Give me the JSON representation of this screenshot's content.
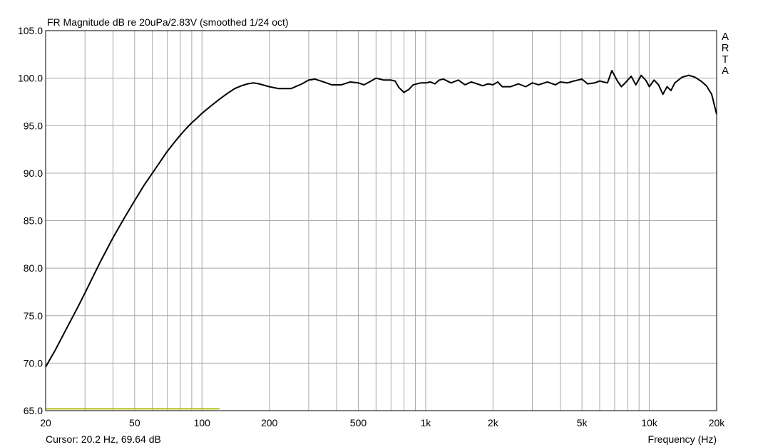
{
  "chart_data": {
    "type": "line",
    "title": "FR Magnitude dB re 20uPa/2.83V (smoothed 1/24 oct)",
    "xlabel": "Frequency (Hz)",
    "ylabel": "",
    "x_scale": "log",
    "xlim": [
      20,
      20000
    ],
    "ylim": [
      65,
      105
    ],
    "grid": true,
    "x_ticks": [
      {
        "value": 20,
        "label": "20"
      },
      {
        "value": 50,
        "label": "50"
      },
      {
        "value": 100,
        "label": "100"
      },
      {
        "value": 200,
        "label": "200"
      },
      {
        "value": 500,
        "label": "500"
      },
      {
        "value": 1000,
        "label": "1k"
      },
      {
        "value": 2000,
        "label": "2k"
      },
      {
        "value": 5000,
        "label": "5k"
      },
      {
        "value": 10000,
        "label": "10k"
      },
      {
        "value": 20000,
        "label": "20k"
      }
    ],
    "x_minor_grid": [
      30,
      40,
      50,
      60,
      70,
      80,
      90,
      100,
      200,
      300,
      400,
      500,
      600,
      700,
      800,
      900,
      1000,
      2000,
      3000,
      4000,
      5000,
      6000,
      7000,
      8000,
      9000,
      10000
    ],
    "y_ticks": [
      {
        "value": 105,
        "label": "105.0"
      },
      {
        "value": 100,
        "label": "100.0"
      },
      {
        "value": 95,
        "label": "95.0"
      },
      {
        "value": 90,
        "label": "90.0"
      },
      {
        "value": 85,
        "label": "85.0"
      },
      {
        "value": 80,
        "label": "80.0"
      },
      {
        "value": 75,
        "label": "75.0"
      },
      {
        "value": 70,
        "label": "70.0"
      },
      {
        "value": 65,
        "label": "65.0"
      }
    ],
    "series": [
      {
        "color": "#000000",
        "points": [
          [
            20,
            69.6
          ],
          [
            22,
            71.3
          ],
          [
            25,
            73.8
          ],
          [
            28,
            76.0
          ],
          [
            30,
            77.4
          ],
          [
            35,
            80.6
          ],
          [
            40,
            83.2
          ],
          [
            45,
            85.3
          ],
          [
            50,
            87.1
          ],
          [
            55,
            88.7
          ],
          [
            60,
            90.0
          ],
          [
            65,
            91.2
          ],
          [
            70,
            92.3
          ],
          [
            75,
            93.2
          ],
          [
            80,
            94.0
          ],
          [
            85,
            94.7
          ],
          [
            90,
            95.3
          ],
          [
            95,
            95.8
          ],
          [
            100,
            96.3
          ],
          [
            110,
            97.1
          ],
          [
            120,
            97.8
          ],
          [
            130,
            98.4
          ],
          [
            140,
            98.9
          ],
          [
            150,
            99.2
          ],
          [
            160,
            99.4
          ],
          [
            170,
            99.5
          ],
          [
            180,
            99.4
          ],
          [
            200,
            99.1
          ],
          [
            220,
            98.9
          ],
          [
            250,
            98.9
          ],
          [
            280,
            99.4
          ],
          [
            300,
            99.8
          ],
          [
            320,
            99.9
          ],
          [
            350,
            99.6
          ],
          [
            380,
            99.3
          ],
          [
            420,
            99.3
          ],
          [
            460,
            99.6
          ],
          [
            500,
            99.5
          ],
          [
            530,
            99.3
          ],
          [
            560,
            99.6
          ],
          [
            600,
            100.0
          ],
          [
            650,
            99.8
          ],
          [
            700,
            99.8
          ],
          [
            730,
            99.7
          ],
          [
            760,
            99.0
          ],
          [
            800,
            98.5
          ],
          [
            840,
            98.8
          ],
          [
            880,
            99.3
          ],
          [
            950,
            99.5
          ],
          [
            1000,
            99.5
          ],
          [
            1050,
            99.6
          ],
          [
            1100,
            99.4
          ],
          [
            1150,
            99.8
          ],
          [
            1200,
            99.9
          ],
          [
            1300,
            99.5
          ],
          [
            1400,
            99.8
          ],
          [
            1500,
            99.3
          ],
          [
            1600,
            99.6
          ],
          [
            1700,
            99.4
          ],
          [
            1800,
            99.2
          ],
          [
            1900,
            99.4
          ],
          [
            2000,
            99.3
          ],
          [
            2100,
            99.6
          ],
          [
            2200,
            99.1
          ],
          [
            2400,
            99.1
          ],
          [
            2600,
            99.4
          ],
          [
            2800,
            99.1
          ],
          [
            3000,
            99.5
          ],
          [
            3200,
            99.3
          ],
          [
            3500,
            99.6
          ],
          [
            3800,
            99.3
          ],
          [
            4000,
            99.6
          ],
          [
            4300,
            99.5
          ],
          [
            4600,
            99.7
          ],
          [
            5000,
            99.9
          ],
          [
            5300,
            99.4
          ],
          [
            5700,
            99.5
          ],
          [
            6000,
            99.7
          ],
          [
            6500,
            99.5
          ],
          [
            6800,
            100.8
          ],
          [
            7200,
            99.7
          ],
          [
            7500,
            99.1
          ],
          [
            7800,
            99.5
          ],
          [
            8300,
            100.2
          ],
          [
            8700,
            99.3
          ],
          [
            9200,
            100.3
          ],
          [
            9700,
            99.7
          ],
          [
            10000,
            99.1
          ],
          [
            10500,
            99.8
          ],
          [
            11000,
            99.3
          ],
          [
            11500,
            98.3
          ],
          [
            12000,
            99.1
          ],
          [
            12500,
            98.7
          ],
          [
            13000,
            99.5
          ],
          [
            14000,
            100.1
          ],
          [
            15000,
            100.3
          ],
          [
            16000,
            100.1
          ],
          [
            17000,
            99.7
          ],
          [
            18000,
            99.2
          ],
          [
            19000,
            98.3
          ],
          [
            20000,
            96.2
          ]
        ]
      }
    ],
    "cursor_marker": {
      "color": "#b5c21c",
      "x_end": 120,
      "y": 65.2
    }
  },
  "brand": {
    "letters": [
      "A",
      "R",
      "T",
      "A"
    ]
  },
  "cursor_readout": "Cursor: 20.2 Hz, 69.64 dB"
}
